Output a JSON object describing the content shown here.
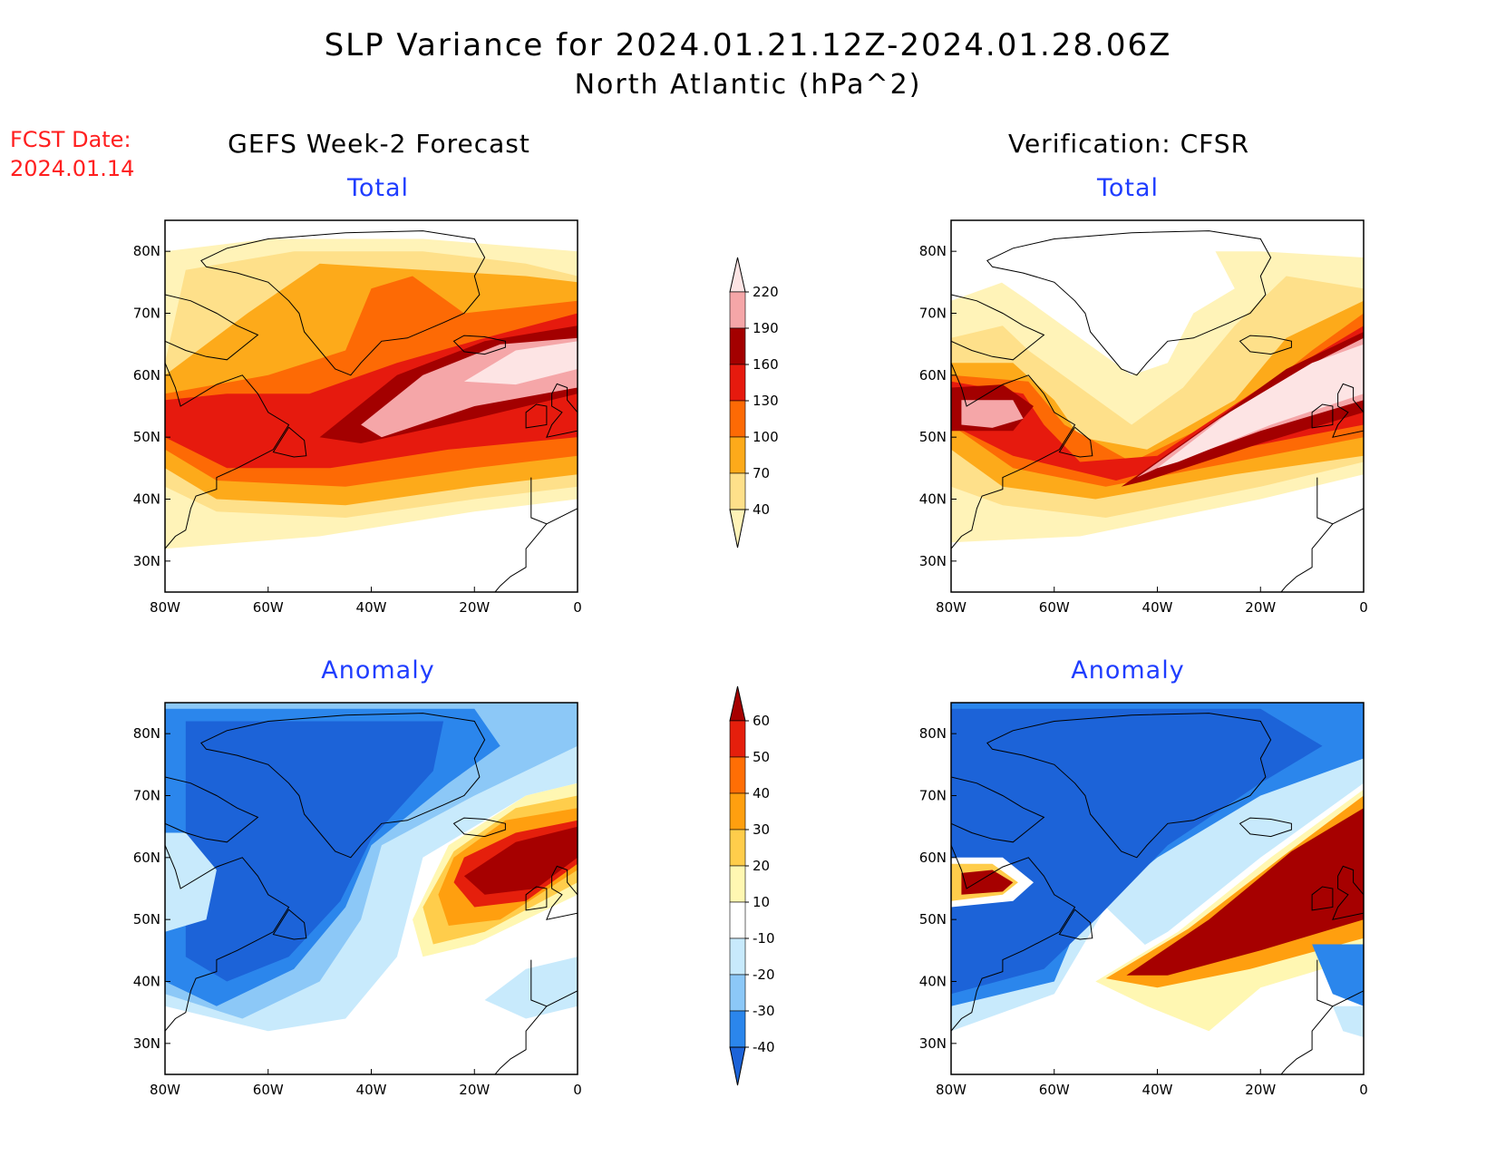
{
  "header": {
    "title_line1": "SLP Variance for 2024.01.21.12Z-2024.01.28.06Z",
    "title_line2": "North Atlantic (hPa^2)",
    "fcst_date_label": "FCST Date:",
    "fcst_date_value": "2024.01.14"
  },
  "columns": {
    "left_title": "GEFS Week-2 Forecast",
    "right_title": "Verification: CFSR"
  },
  "panels": {
    "total_label": "Total",
    "anomaly_label": "Anomaly"
  },
  "axes": {
    "lat_labels": [
      "80N",
      "70N",
      "60N",
      "50N",
      "40N",
      "30N"
    ],
    "lat_values": [
      80,
      70,
      60,
      50,
      40,
      30
    ],
    "lon_labels": [
      "80W",
      "60W",
      "40W",
      "20W",
      "0"
    ],
    "lon_values": [
      -80,
      -60,
      -40,
      -20,
      0
    ],
    "lon_range": [
      -80,
      0
    ],
    "lat_range": [
      25,
      85
    ]
  },
  "colorbars": {
    "total": {
      "levels": [
        "40",
        "70",
        "100",
        "130",
        "160",
        "190",
        "220"
      ],
      "colors": [
        "#fff3b8",
        "#fee08a",
        "#fdaa1a",
        "#fd6a05",
        "#e61a0e",
        "#a30000",
        "#f5a6a8",
        "#fde4e4"
      ]
    },
    "anomaly": {
      "levels": [
        "-40",
        "-30",
        "-20",
        "-10",
        "10",
        "20",
        "30",
        "40",
        "50",
        "60"
      ],
      "colors": [
        "#1c63d8",
        "#2b86ec",
        "#8cc8f7",
        "#c8eafc",
        "#ffffff",
        "#fff7b2",
        "#ffcd4b",
        "#ff9f0f",
        "#ff6e05",
        "#e51f0c",
        "#a60000"
      ]
    }
  }
}
